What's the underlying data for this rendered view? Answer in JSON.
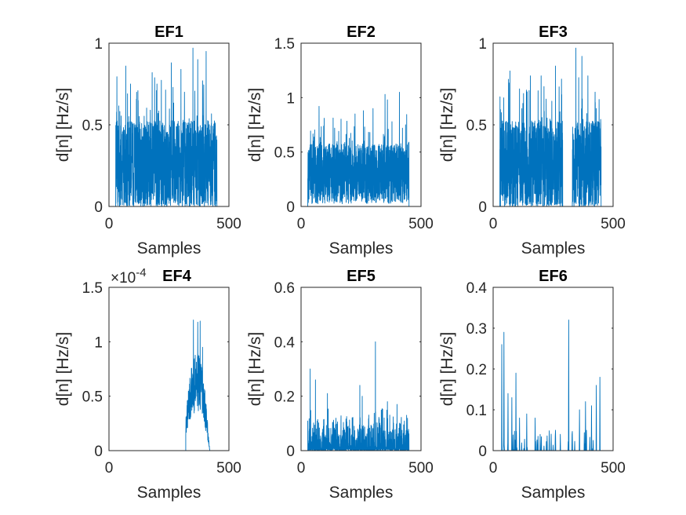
{
  "figure": {
    "series_color": "#0072BD"
  },
  "chart_data": [
    {
      "type": "line",
      "title": "EF1",
      "xlabel": "Samples",
      "ylabel": "d[n] [Hz/s]",
      "xlim": [
        0,
        500
      ],
      "ylim": [
        0,
        1
      ],
      "xticks": [
        0,
        500
      ],
      "yticks": [
        0,
        0.5,
        1
      ],
      "xticklabels": [
        "0",
        "500"
      ],
      "yticklabels": [
        "0",
        "0.5",
        "1"
      ],
      "exponent_label": "",
      "series": [
        {
          "segments": [
            {
              "range": [
                0,
                28
              ],
              "value": 0
            },
            {
              "range": [
                28,
                450
              ],
              "min": 0.0,
              "max": 0.97,
              "base": 0.25,
              "density": 3,
              "peaks": [
                [
                  70,
                  0.86
                ],
                [
                  90,
                  0.75
                ],
                [
                  180,
                  0.82
                ],
                [
                  200,
                  0.75
                ],
                [
                  260,
                  0.88
                ],
                [
                  300,
                  0.84
                ],
                [
                  350,
                  0.97
                ],
                [
                  370,
                  0.9
                ],
                [
                  390,
                  0.77
                ],
                [
                  405,
                  0.95
                ]
              ]
            },
            {
              "range": [
                450,
                500
              ],
              "value": 0
            }
          ]
        }
      ]
    },
    {
      "type": "line",
      "title": "EF2",
      "xlabel": "Samples",
      "ylabel": "d[n] [Hz/s]",
      "xlim": [
        0,
        500
      ],
      "ylim": [
        0,
        1.5
      ],
      "xticks": [
        0,
        500
      ],
      "yticks": [
        0,
        0.5,
        1,
        1.5
      ],
      "xticklabels": [
        "0",
        "500"
      ],
      "yticklabels": [
        "0",
        "0.5",
        "1",
        "1.5"
      ],
      "exponent_label": "",
      "series": [
        {
          "segments": [
            {
              "range": [
                0,
                28
              ],
              "value": 0
            },
            {
              "range": [
                28,
                450
              ],
              "min": 0.0,
              "max": 1.05,
              "base": 0.3,
              "density": 3,
              "peaks": [
                [
                  75,
                  0.92
                ],
                [
                  140,
                  0.72
                ],
                [
                  225,
                  0.85
                ],
                [
                  260,
                  0.88
                ],
                [
                  300,
                  0.9
                ],
                [
                  350,
                  1.03
                ],
                [
                  360,
                  0.98
                ],
                [
                  410,
                  1.05
                ]
              ]
            },
            {
              "range": [
                450,
                500
              ],
              "value": 0
            }
          ]
        }
      ]
    },
    {
      "type": "line",
      "title": "EF3",
      "xlabel": "Samples",
      "ylabel": "d[n] [Hz/s]",
      "xlim": [
        0,
        500
      ],
      "ylim": [
        0,
        1
      ],
      "xticks": [
        0,
        500
      ],
      "yticks": [
        0,
        0.5,
        1
      ],
      "xticklabels": [
        "0",
        "500"
      ],
      "yticklabels": [
        "0",
        "0.5",
        "1"
      ],
      "exponent_label": "",
      "series": [
        {
          "segments": [
            {
              "range": [
                0,
                28
              ],
              "value": 0
            },
            {
              "range": [
                28,
                290
              ],
              "min": 0.0,
              "max": 0.95,
              "base": 0.25,
              "density": 3,
              "peaks": [
                [
                  70,
                  0.83
                ],
                [
                  110,
                  0.72
                ],
                [
                  150,
                  0.71
                ],
                [
                  200,
                  0.8
                ],
                [
                  260,
                  0.86
                ],
                [
                  285,
                  0.78
                ]
              ]
            },
            {
              "range": [
                290,
                330
              ],
              "value": 0
            },
            {
              "range": [
                330,
                450
              ],
              "min": 0.0,
              "max": 0.97,
              "base": 0.25,
              "density": 3,
              "peaks": [
                [
                  345,
                  0.97
                ],
                [
                  370,
                  0.92
                ],
                [
                  395,
                  0.8
                ],
                [
                  430,
                  0.6
                ]
              ]
            },
            {
              "range": [
                450,
                500
              ],
              "value": 0
            }
          ]
        }
      ]
    },
    {
      "type": "line",
      "title": "EF4",
      "xlabel": "Samples",
      "ylabel": "d[n] [Hz/s]",
      "xlim": [
        0,
        500
      ],
      "ylim": [
        0,
        1.5
      ],
      "xticks": [
        0,
        500
      ],
      "yticks": [
        0,
        0.5,
        1,
        1.5
      ],
      "xticklabels": [
        "0",
        "500"
      ],
      "yticklabels": [
        "0",
        "0.5",
        "1",
        "1.5"
      ],
      "exponent_label": "×10",
      "exponent_power": "-4",
      "series": [
        {
          "segments": [
            {
              "range": [
                0,
                320
              ],
              "value": 0
            },
            {
              "range": [
                320,
                430
              ],
              "min": 0.0,
              "max": 1.2,
              "base": 0.35,
              "density": 2,
              "envelope": true,
              "peaks": [
                [
                  352,
                  1.21
                ],
                [
                  370,
                  1.18
                ],
                [
                  380,
                  1.19
                ],
                [
                  390,
                  0.95
                ],
                [
                  400,
                  0.55
                ]
              ]
            },
            {
              "range": [
                430,
                500
              ],
              "value": 0
            }
          ]
        }
      ]
    },
    {
      "type": "line",
      "title": "EF5",
      "xlabel": "Samples",
      "ylabel": "d[n] [Hz/s]",
      "xlim": [
        0,
        500
      ],
      "ylim": [
        0,
        0.6
      ],
      "xticks": [
        0,
        500
      ],
      "yticks": [
        0,
        0.2,
        0.4,
        0.6
      ],
      "xticklabels": [
        "0",
        "500"
      ],
      "yticklabels": [
        "0",
        "0.2",
        "0.4",
        "0.6"
      ],
      "exponent_label": "",
      "series": [
        {
          "segments": [
            {
              "range": [
                0,
                28
              ],
              "value": 0
            },
            {
              "range": [
                28,
                450
              ],
              "min": 0.0,
              "max": 0.4,
              "base": 0.05,
              "density": 3,
              "sparse": true,
              "peaks": [
                [
                  38,
                  0.3
                ],
                [
                  60,
                  0.26
                ],
                [
                  110,
                  0.21
                ],
                [
                  245,
                  0.24
                ],
                [
                  255,
                  0.2
                ],
                [
                  310,
                  0.4
                ],
                [
                  360,
                  0.18
                ],
                [
                  400,
                  0.17
                ],
                [
                  440,
                  0.13
                ]
              ]
            },
            {
              "range": [
                450,
                500
              ],
              "value": 0
            }
          ]
        }
      ]
    },
    {
      "type": "line",
      "title": "EF6",
      "xlabel": "Samples",
      "ylabel": "d[n] [Hz/s]",
      "xlim": [
        0,
        500
      ],
      "ylim": [
        0,
        0.4
      ],
      "xticks": [
        0,
        500
      ],
      "yticks": [
        0,
        0.1,
        0.2,
        0.3,
        0.4
      ],
      "xticklabels": [
        "0",
        "500"
      ],
      "yticklabels": [
        "0",
        "0.1",
        "0.2",
        "0.3",
        "0.4"
      ],
      "exponent_label": "",
      "series": [
        {
          "segments": [
            {
              "range": [
                0,
                28
              ],
              "value": 0
            },
            {
              "range": [
                28,
                450
              ],
              "min": 0.0,
              "max": 0.32,
              "base": 0.0,
              "density": 1,
              "spikes": true,
              "peaks": [
                [
                  36,
                  0.26
                ],
                [
                  45,
                  0.29
                ],
                [
                  62,
                  0.14
                ],
                [
                  78,
                  0.13
                ],
                [
                  95,
                  0.19
                ],
                [
                  110,
                  0.08
                ],
                [
                  140,
                  0.09
                ],
                [
                  175,
                  0.08
                ],
                [
                  260,
                  0.05
                ],
                [
                  280,
                  0.04
                ],
                [
                  315,
                  0.32
                ],
                [
                  360,
                  0.1
                ],
                [
                  385,
                  0.12
                ],
                [
                  410,
                  0.11
                ],
                [
                  430,
                  0.16
                ],
                [
                  445,
                  0.18
                ]
              ]
            },
            {
              "range": [
                450,
                500
              ],
              "value": 0
            }
          ]
        }
      ]
    }
  ]
}
